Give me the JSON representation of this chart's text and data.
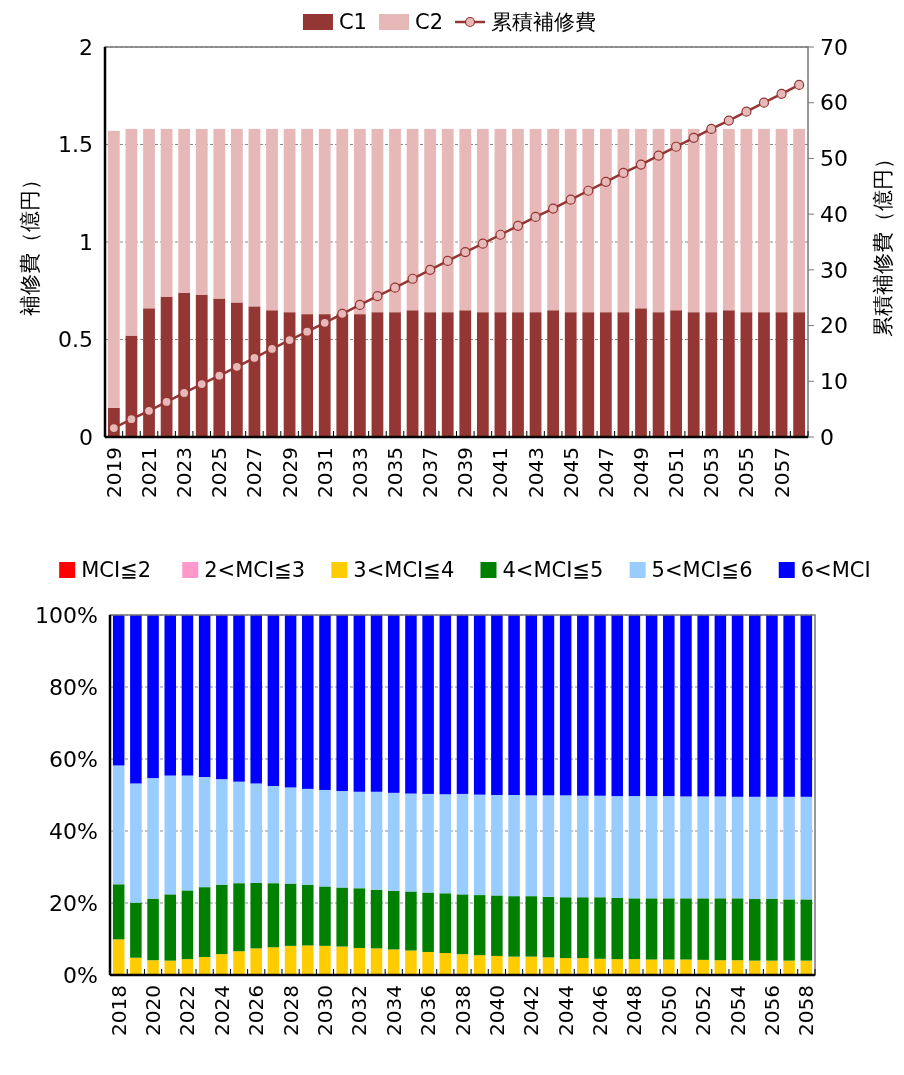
{
  "chart_data": [
    {
      "type": "bar",
      "stacked": true,
      "ylabel": "補修費（億円）",
      "y2label": "累積補修費（億円）",
      "categories": [
        "2019",
        null,
        "2021",
        null,
        "2023",
        null,
        "2025",
        null,
        "2027",
        null,
        "2029",
        null,
        "2031",
        null,
        "2033",
        null,
        "2035",
        null,
        "2037",
        null,
        "2039",
        null,
        "2041",
        null,
        "2043",
        null,
        "2045",
        null,
        "2047",
        null,
        "2049",
        null,
        "2051",
        null,
        "2053",
        null,
        "2055",
        null,
        "2057",
        null
      ],
      "series": [
        {
          "name": "C1",
          "color": "#943634",
          "values": [
            0.15,
            0.52,
            0.66,
            0.72,
            0.74,
            0.73,
            0.71,
            0.69,
            0.67,
            0.65,
            0.64,
            0.63,
            0.63,
            0.63,
            0.63,
            0.64,
            0.64,
            0.65,
            0.64,
            0.64,
            0.65,
            0.64,
            0.64,
            0.64,
            0.64,
            0.65,
            0.64,
            0.64,
            0.64,
            0.64,
            0.66,
            0.64,
            0.65,
            0.64,
            0.64,
            0.65,
            0.64,
            0.64,
            0.64,
            0.64
          ]
        },
        {
          "name": "C2",
          "color": "#e6b8b7",
          "values": [
            1.42,
            1.06,
            0.92,
            0.86,
            0.84,
            0.85,
            0.87,
            0.89,
            0.91,
            0.93,
            0.94,
            0.95,
            0.95,
            0.95,
            0.95,
            0.94,
            0.94,
            0.93,
            0.94,
            0.94,
            0.93,
            0.94,
            0.94,
            0.94,
            0.94,
            0.93,
            0.94,
            0.94,
            0.94,
            0.94,
            0.92,
            0.94,
            0.93,
            0.94,
            0.94,
            0.93,
            0.94,
            0.94,
            0.94,
            0.94
          ]
        },
        {
          "name": "累積補修費",
          "type": "line",
          "axis": "y2",
          "color": "#943634",
          "values": [
            1.6,
            3.2,
            4.7,
            6.3,
            7.9,
            9.5,
            11.0,
            12.6,
            14.2,
            15.8,
            17.4,
            18.9,
            20.5,
            22.1,
            23.7,
            25.3,
            26.8,
            28.4,
            30.0,
            31.6,
            33.2,
            34.7,
            36.3,
            37.9,
            39.5,
            41.0,
            42.6,
            44.2,
            45.8,
            47.4,
            48.9,
            50.5,
            52.1,
            53.7,
            55.3,
            56.8,
            58.4,
            60.0,
            61.6,
            63.2
          ]
        }
      ],
      "marker": "circle",
      "ylim": [
        0,
        2
      ],
      "yticks": [
        0,
        0.5,
        1,
        1.5,
        2
      ],
      "y2lim": [
        0,
        70
      ],
      "y2ticks": [
        0,
        10,
        20,
        30,
        40,
        50,
        60,
        70
      ],
      "grid": "y",
      "legend": "top"
    },
    {
      "type": "bar",
      "stacked": true,
      "categories": [
        "2018",
        null,
        "2020",
        null,
        "2022",
        null,
        "2024",
        null,
        "2026",
        null,
        "2028",
        null,
        "2030",
        null,
        "2032",
        null,
        "2034",
        null,
        "2036",
        null,
        "2038",
        null,
        "2040",
        null,
        "2042",
        null,
        "2044",
        null,
        "2046",
        null,
        "2048",
        null,
        "2050",
        null,
        "2052",
        null,
        "2054",
        null,
        "2056",
        null,
        "2058"
      ],
      "series": [
        {
          "name": "MCI≦2",
          "color": "#ff0000",
          "values": [
            0,
            0,
            0,
            0,
            0,
            0,
            0,
            0,
            0,
            0,
            0,
            0,
            0,
            0,
            0,
            0,
            0,
            0,
            0,
            0,
            0,
            0,
            0,
            0,
            0,
            0,
            0,
            0,
            0,
            0,
            0,
            0,
            0,
            0,
            0,
            0,
            0,
            0,
            0,
            0,
            0
          ]
        },
        {
          "name": "2<MCI≦3",
          "color": "#ff99cc",
          "values": [
            0.3,
            0,
            0,
            0,
            0,
            0,
            0,
            0,
            0,
            0,
            0,
            0,
            0,
            0,
            0,
            0,
            0,
            0,
            0,
            0,
            0,
            0,
            0,
            0,
            0,
            0,
            0,
            0,
            0,
            0,
            0,
            0,
            0,
            0,
            0,
            0,
            0,
            0,
            0,
            0,
            0
          ]
        },
        {
          "name": "3<MCI≦4",
          "color": "#ffcc00",
          "values": [
            9.6,
            4.8,
            4.1,
            4.0,
            4.4,
            5.0,
            5.8,
            6.6,
            7.4,
            7.7,
            8.1,
            8.2,
            8.1,
            7.9,
            7.5,
            7.4,
            7.1,
            6.8,
            6.4,
            6.1,
            5.8,
            5.5,
            5.3,
            5.1,
            5.1,
            4.9,
            4.7,
            4.7,
            4.5,
            4.4,
            4.4,
            4.3,
            4.3,
            4.3,
            4.2,
            4.1,
            4.1,
            4.0,
            4.0,
            4.0,
            4.0
          ]
        },
        {
          "name": "4<MCI≦5",
          "color": "#008000",
          "values": [
            15.3,
            15.3,
            17.1,
            18.4,
            19.1,
            19.4,
            19.3,
            18.9,
            18.2,
            17.8,
            17.3,
            16.9,
            16.5,
            16.4,
            16.6,
            16.3,
            16.3,
            16.4,
            16.5,
            16.6,
            16.6,
            16.7,
            16.8,
            16.8,
            16.8,
            16.8,
            16.9,
            16.9,
            17.1,
            17.0,
            16.9,
            17.0,
            17.0,
            17.0,
            17.1,
            17.2,
            17.2,
            17.1,
            17.2,
            17.0,
            17.0
          ]
        },
        {
          "name": "5<MCI≦6",
          "color": "#99ccff",
          "values": [
            33.0,
            33.1,
            33.5,
            33.0,
            31.9,
            30.6,
            29.3,
            28.2,
            27.6,
            27.0,
            26.7,
            26.6,
            26.8,
            26.8,
            26.8,
            27.2,
            27.2,
            27.2,
            27.4,
            27.5,
            27.9,
            27.9,
            27.9,
            28.1,
            28.0,
            28.2,
            28.3,
            28.2,
            28.2,
            28.3,
            28.4,
            28.4,
            28.4,
            28.3,
            28.3,
            28.3,
            28.2,
            28.4,
            28.3,
            28.5,
            28.5
          ]
        },
        {
          "name": "6<MCI",
          "color": "#0000ff",
          "values": [
            41.8,
            46.8,
            45.3,
            44.6,
            44.6,
            45.0,
            45.6,
            46.3,
            46.8,
            47.5,
            47.9,
            48.3,
            48.6,
            48.9,
            49.1,
            49.1,
            49.4,
            49.6,
            49.7,
            49.8,
            49.7,
            49.9,
            50.0,
            50.0,
            50.1,
            50.1,
            50.1,
            50.2,
            50.2,
            50.3,
            50.3,
            50.3,
            50.3,
            50.4,
            50.4,
            50.4,
            50.5,
            50.5,
            50.5,
            50.5,
            50.5
          ]
        }
      ],
      "ylim": [
        0,
        100
      ],
      "yticks": [
        {
          "value": 0,
          "label": "0%"
        },
        {
          "value": 20,
          "label": "20%"
        },
        {
          "value": 40,
          "label": "40%"
        },
        {
          "value": 60,
          "label": "60%"
        },
        {
          "value": 80,
          "label": "80%"
        },
        {
          "value": 100,
          "label": "100%"
        }
      ],
      "grid": "y",
      "legend": "top"
    }
  ]
}
